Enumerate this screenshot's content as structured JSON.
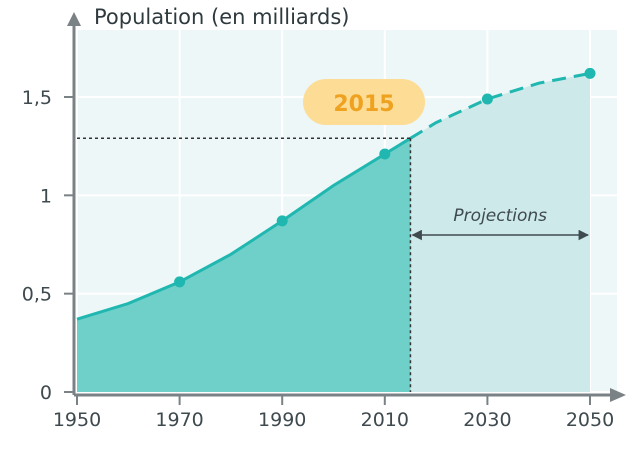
{
  "chart_data": {
    "type": "area",
    "title": "Population (en milliards)",
    "x_ticks": [
      "1950",
      "1970",
      "1990",
      "2010",
      "2030",
      "2050"
    ],
    "y_ticks": [
      "0",
      "0,5",
      "1",
      "1,5"
    ],
    "x_range": [
      1950,
      2050
    ],
    "y_range": [
      0,
      1.75
    ],
    "highlight_year_label": "2015",
    "highlight_year": 2015,
    "projection_label": "Projections",
    "series": [
      {
        "observed": [
          {
            "x": 1950,
            "y": 0.37
          },
          {
            "x": 1960,
            "y": 0.45
          },
          {
            "x": 1970,
            "y": 0.56
          },
          {
            "x": 1980,
            "y": 0.7
          },
          {
            "x": 1990,
            "y": 0.87
          },
          {
            "x": 2000,
            "y": 1.05
          },
          {
            "x": 2010,
            "y": 1.21
          },
          {
            "x": 2015,
            "y": 1.29
          }
        ],
        "projected": [
          {
            "x": 2015,
            "y": 1.29
          },
          {
            "x": 2020,
            "y": 1.37
          },
          {
            "x": 2030,
            "y": 1.49
          },
          {
            "x": 2040,
            "y": 1.57
          },
          {
            "x": 2050,
            "y": 1.62
          }
        ],
        "markers": [
          {
            "x": 1970,
            "y": 0.56
          },
          {
            "x": 1990,
            "y": 0.87
          },
          {
            "x": 2010,
            "y": 1.21
          },
          {
            "x": 2030,
            "y": 1.49
          },
          {
            "x": 2050,
            "y": 1.62
          }
        ]
      }
    ],
    "grid": true,
    "colors": {
      "observed_fill": "#6fd0c9",
      "projected_fill": "#cde9ea",
      "line": "#1fb7b0",
      "plot_bg": "#edf7f7",
      "grid": "#ffffff",
      "axis": "#7a8286",
      "badge_fill": "#fddc96",
      "badge_text": "#eea21f"
    }
  }
}
